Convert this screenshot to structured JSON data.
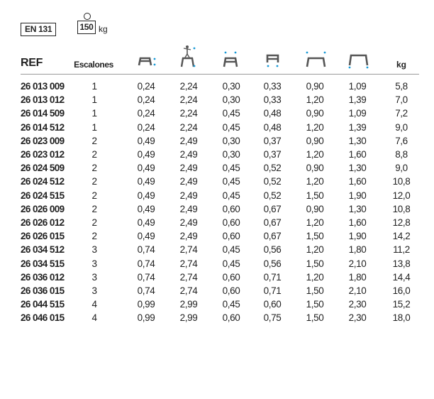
{
  "badges": {
    "norm": "EN 131",
    "max_load": "150",
    "max_load_unit": "kg"
  },
  "header": {
    "ref": "REF",
    "steps": "Escalones",
    "weight": "kg",
    "icons": [
      "step-height-icon",
      "reach-height-icon",
      "platform-width-icon",
      "platform-depth-icon",
      "base-width-icon",
      "base-depth-icon"
    ]
  },
  "accent_color": "#1a9ad6",
  "rows": [
    {
      "ref": "26 013 009",
      "steps": "1",
      "a": "0,24",
      "b": "2,24",
      "c": "0,30",
      "d": "0,33",
      "e": "0,90",
      "f": "1,09",
      "kg": "5,8"
    },
    {
      "ref": "26 013 012",
      "steps": "1",
      "a": "0,24",
      "b": "2,24",
      "c": "0,30",
      "d": "0,33",
      "e": "1,20",
      "f": "1,39",
      "kg": "7,0"
    },
    {
      "ref": "26 014 509",
      "steps": "1",
      "a": "0,24",
      "b": "2,24",
      "c": "0,45",
      "d": "0,48",
      "e": "0,90",
      "f": "1,09",
      "kg": "7,2"
    },
    {
      "ref": "26 014 512",
      "steps": "1",
      "a": "0,24",
      "b": "2,24",
      "c": "0,45",
      "d": "0,48",
      "e": "1,20",
      "f": "1,39",
      "kg": "9,0"
    },
    {
      "ref": "26 023 009",
      "steps": "2",
      "a": "0,49",
      "b": "2,49",
      "c": "0,30",
      "d": "0,37",
      "e": "0,90",
      "f": "1,30",
      "kg": "7,6"
    },
    {
      "ref": "26 023 012",
      "steps": "2",
      "a": "0,49",
      "b": "2,49",
      "c": "0,30",
      "d": "0,37",
      "e": "1,20",
      "f": "1,60",
      "kg": "8,8"
    },
    {
      "ref": "26 024 509",
      "steps": "2",
      "a": "0,49",
      "b": "2,49",
      "c": "0,45",
      "d": "0,52",
      "e": "0,90",
      "f": "1,30",
      "kg": "9,0"
    },
    {
      "ref": "26 024 512",
      "steps": "2",
      "a": "0,49",
      "b": "2,49",
      "c": "0,45",
      "d": "0,52",
      "e": "1,20",
      "f": "1,60",
      "kg": "10,8"
    },
    {
      "ref": "26 024 515",
      "steps": "2",
      "a": "0,49",
      "b": "2,49",
      "c": "0,45",
      "d": "0,52",
      "e": "1,50",
      "f": "1,90",
      "kg": "12,0"
    },
    {
      "ref": "26 026 009",
      "steps": "2",
      "a": "0,49",
      "b": "2,49",
      "c": "0,60",
      "d": "0,67",
      "e": "0,90",
      "f": "1,30",
      "kg": "10,8"
    },
    {
      "ref": "26 026 012",
      "steps": "2",
      "a": "0,49",
      "b": "2,49",
      "c": "0,60",
      "d": "0,67",
      "e": "1,20",
      "f": "1,60",
      "kg": "12,8"
    },
    {
      "ref": "26 026 015",
      "steps": "2",
      "a": "0,49",
      "b": "2,49",
      "c": "0,60",
      "d": "0,67",
      "e": "1,50",
      "f": "1,90",
      "kg": "14,2"
    },
    {
      "ref": "26 034 512",
      "steps": "3",
      "a": "0,74",
      "b": "2,74",
      "c": "0,45",
      "d": "0,56",
      "e": "1,20",
      "f": "1,80",
      "kg": "11,2"
    },
    {
      "ref": "26 034 515",
      "steps": "3",
      "a": "0,74",
      "b": "2,74",
      "c": "0,45",
      "d": "0,56",
      "e": "1,50",
      "f": "2,10",
      "kg": "13,8"
    },
    {
      "ref": "26 036 012",
      "steps": "3",
      "a": "0,74",
      "b": "2,74",
      "c": "0,60",
      "d": "0,71",
      "e": "1,20",
      "f": "1,80",
      "kg": "14,4"
    },
    {
      "ref": "26 036 015",
      "steps": "3",
      "a": "0,74",
      "b": "2,74",
      "c": "0,60",
      "d": "0,71",
      "e": "1,50",
      "f": "2,10",
      "kg": "16,0"
    },
    {
      "ref": "26 044 515",
      "steps": "4",
      "a": "0,99",
      "b": "2,99",
      "c": "0,45",
      "d": "0,60",
      "e": "1,50",
      "f": "2,30",
      "kg": "15,2"
    },
    {
      "ref": "26 046 015",
      "steps": "4",
      "a": "0,99",
      "b": "2,99",
      "c": "0,60",
      "d": "0,75",
      "e": "1,50",
      "f": "2,30",
      "kg": "18,0"
    }
  ]
}
